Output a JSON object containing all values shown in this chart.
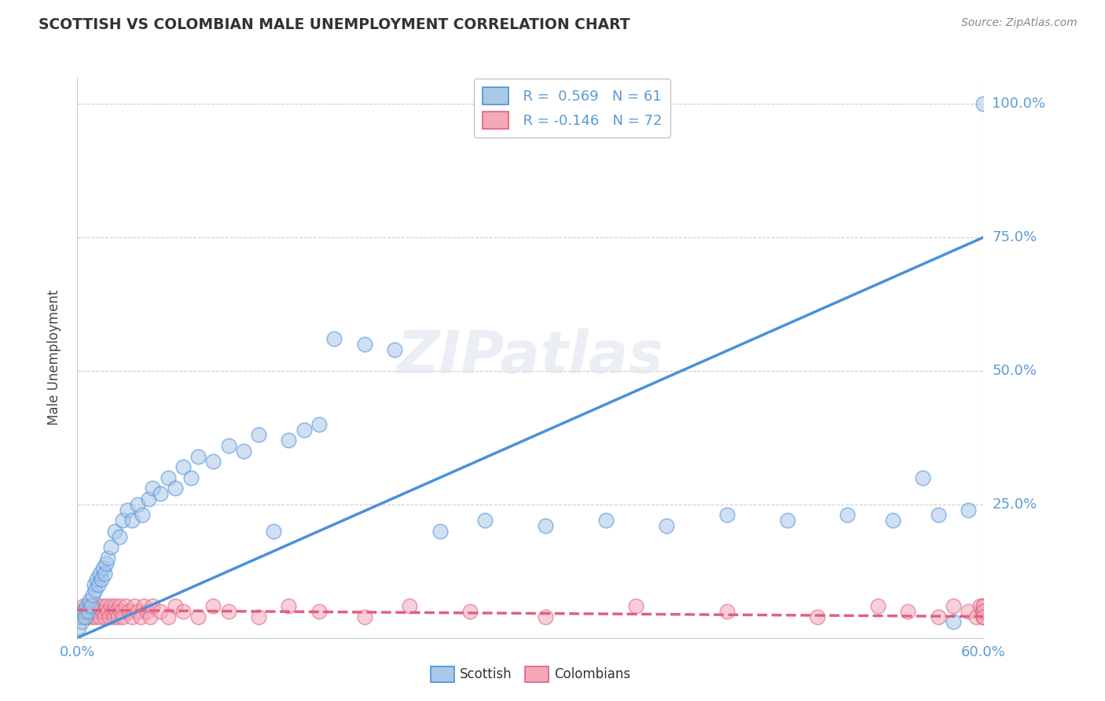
{
  "title": "SCOTTISH VS COLOMBIAN MALE UNEMPLOYMENT CORRELATION CHART",
  "source": "Source: ZipAtlas.com",
  "ylabel": "Male Unemployment",
  "xlim": [
    0.0,
    0.6
  ],
  "ylim": [
    0.0,
    1.05
  ],
  "scottish_color": "#aac8e8",
  "colombian_color": "#f4a8b8",
  "scottish_line_color": "#4a90d9",
  "colombian_line_color": "#e06080",
  "background_color": "#ffffff",
  "grid_color": "#cccccc",
  "scottish_x": [
    0.001,
    0.002,
    0.003,
    0.004,
    0.005,
    0.006,
    0.007,
    0.008,
    0.009,
    0.01,
    0.011,
    0.012,
    0.013,
    0.014,
    0.015,
    0.016,
    0.017,
    0.018,
    0.019,
    0.02,
    0.022,
    0.025,
    0.028,
    0.03,
    0.033,
    0.036,
    0.04,
    0.043,
    0.047,
    0.05,
    0.055,
    0.06,
    0.065,
    0.07,
    0.075,
    0.08,
    0.09,
    0.1,
    0.11,
    0.12,
    0.13,
    0.14,
    0.15,
    0.16,
    0.17,
    0.19,
    0.21,
    0.24,
    0.27,
    0.31,
    0.35,
    0.39,
    0.43,
    0.47,
    0.51,
    0.54,
    0.56,
    0.57,
    0.58,
    0.59,
    0.6
  ],
  "scottish_y": [
    0.02,
    0.04,
    0.03,
    0.05,
    0.04,
    0.06,
    0.05,
    0.07,
    0.06,
    0.08,
    0.1,
    0.09,
    0.11,
    0.1,
    0.12,
    0.11,
    0.13,
    0.12,
    0.14,
    0.15,
    0.17,
    0.2,
    0.19,
    0.22,
    0.24,
    0.22,
    0.25,
    0.23,
    0.26,
    0.28,
    0.27,
    0.3,
    0.28,
    0.32,
    0.3,
    0.34,
    0.33,
    0.36,
    0.35,
    0.38,
    0.2,
    0.37,
    0.39,
    0.4,
    0.56,
    0.55,
    0.54,
    0.2,
    0.22,
    0.21,
    0.22,
    0.21,
    0.23,
    0.22,
    0.23,
    0.22,
    0.3,
    0.23,
    0.03,
    0.24,
    1.0
  ],
  "colombian_x": [
    0.001,
    0.002,
    0.003,
    0.004,
    0.005,
    0.006,
    0.007,
    0.008,
    0.009,
    0.01,
    0.011,
    0.012,
    0.013,
    0.014,
    0.015,
    0.016,
    0.017,
    0.018,
    0.019,
    0.02,
    0.021,
    0.022,
    0.023,
    0.024,
    0.025,
    0.026,
    0.027,
    0.028,
    0.029,
    0.03,
    0.032,
    0.034,
    0.036,
    0.038,
    0.04,
    0.042,
    0.044,
    0.046,
    0.048,
    0.05,
    0.055,
    0.06,
    0.065,
    0.07,
    0.08,
    0.09,
    0.1,
    0.12,
    0.14,
    0.16,
    0.19,
    0.22,
    0.26,
    0.31,
    0.37,
    0.43,
    0.49,
    0.53,
    0.55,
    0.57,
    0.58,
    0.59,
    0.595,
    0.598,
    0.6,
    0.6,
    0.6,
    0.6,
    0.6,
    0.6,
    0.6,
    0.6
  ],
  "colombian_y": [
    0.04,
    0.05,
    0.04,
    0.06,
    0.05,
    0.04,
    0.06,
    0.05,
    0.04,
    0.06,
    0.05,
    0.04,
    0.06,
    0.05,
    0.04,
    0.06,
    0.05,
    0.04,
    0.06,
    0.05,
    0.04,
    0.06,
    0.05,
    0.04,
    0.06,
    0.05,
    0.04,
    0.06,
    0.05,
    0.04,
    0.06,
    0.05,
    0.04,
    0.06,
    0.05,
    0.04,
    0.06,
    0.05,
    0.04,
    0.06,
    0.05,
    0.04,
    0.06,
    0.05,
    0.04,
    0.06,
    0.05,
    0.04,
    0.06,
    0.05,
    0.04,
    0.06,
    0.05,
    0.04,
    0.06,
    0.05,
    0.04,
    0.06,
    0.05,
    0.04,
    0.06,
    0.05,
    0.04,
    0.06,
    0.05,
    0.04,
    0.06,
    0.05,
    0.04,
    0.06,
    0.05,
    0.04
  ],
  "blue_line_x": [
    0.0,
    0.6
  ],
  "blue_line_y": [
    0.0,
    0.75
  ],
  "pink_line_x": [
    0.0,
    0.6
  ],
  "pink_line_y": [
    0.052,
    0.04
  ]
}
